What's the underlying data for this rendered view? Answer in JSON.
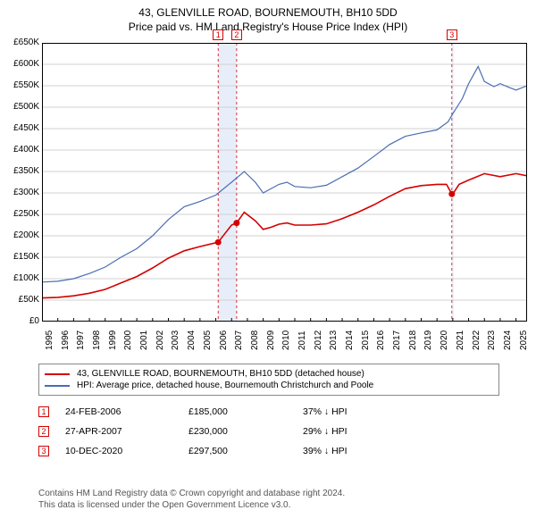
{
  "title": {
    "line1": "43, GLENVILLE ROAD, BOURNEMOUTH, BH10 5DD",
    "line2": "Price paid vs. HM Land Registry's House Price Index (HPI)",
    "fontsize": 12,
    "color": "#000000"
  },
  "chart": {
    "type": "line",
    "background_color": "#ffffff",
    "border_color": "#000000",
    "grid_color": "#d0d0d0",
    "highlight_band_color": "#e8eef9",
    "x": {
      "min": 1995,
      "max": 2025.7,
      "ticks": [
        1995,
        1996,
        1997,
        1998,
        1999,
        2000,
        2001,
        2002,
        2003,
        2004,
        2005,
        2006,
        2007,
        2008,
        2009,
        2010,
        2011,
        2012,
        2013,
        2014,
        2015,
        2016,
        2017,
        2018,
        2019,
        2020,
        2021,
        2022,
        2023,
        2024,
        2025
      ],
      "tick_labels": [
        "1995",
        "1996",
        "1997",
        "1998",
        "1999",
        "2000",
        "2001",
        "2002",
        "2003",
        "2004",
        "2005",
        "2006",
        "2007",
        "2008",
        "2009",
        "2010",
        "2011",
        "2012",
        "2013",
        "2014",
        "2015",
        "2016",
        "2017",
        "2018",
        "2019",
        "2020",
        "2021",
        "2022",
        "2023",
        "2024",
        "2025"
      ],
      "tick_fontsize": 10
    },
    "y": {
      "min": 0,
      "max": 650000,
      "step": 50000,
      "ticks": [
        0,
        50000,
        100000,
        150000,
        200000,
        250000,
        300000,
        350000,
        400000,
        450000,
        500000,
        550000,
        600000,
        650000
      ],
      "tick_labels": [
        "£0",
        "£50K",
        "£100K",
        "£150K",
        "£200K",
        "£250K",
        "£300K",
        "£350K",
        "£400K",
        "£450K",
        "£500K",
        "£550K",
        "£600K",
        "£650K"
      ],
      "tick_fontsize": 10
    },
    "highlight_bands": [
      {
        "xstart": 2006.15,
        "xend": 2007.32
      },
      {
        "xstart": 2020.94,
        "xend": 2021.05
      }
    ],
    "series": [
      {
        "name": "price_paid",
        "label": "43, GLENVILLE ROAD, BOURNEMOUTH, BH10 5DD (detached house)",
        "color": "#d40000",
        "line_width": 1.6,
        "points": [
          [
            1995.0,
            55000
          ],
          [
            1996.0,
            56500
          ],
          [
            1997.0,
            60000
          ],
          [
            1998.0,
            66000
          ],
          [
            1999.0,
            75000
          ],
          [
            2000.0,
            90000
          ],
          [
            2001.0,
            105000
          ],
          [
            2002.0,
            125000
          ],
          [
            2003.0,
            148000
          ],
          [
            2004.0,
            165000
          ],
          [
            2005.0,
            175000
          ],
          [
            2006.15,
            185000
          ],
          [
            2007.0,
            225000
          ],
          [
            2007.32,
            230000
          ],
          [
            2007.8,
            255000
          ],
          [
            2008.5,
            235000
          ],
          [
            2009.0,
            215000
          ],
          [
            2009.5,
            220000
          ],
          [
            2010.0,
            227000
          ],
          [
            2010.5,
            230000
          ],
          [
            2011.0,
            225000
          ],
          [
            2012.0,
            225000
          ],
          [
            2013.0,
            228000
          ],
          [
            2014.0,
            240000
          ],
          [
            2015.0,
            255000
          ],
          [
            2016.0,
            272000
          ],
          [
            2017.0,
            292000
          ],
          [
            2018.0,
            310000
          ],
          [
            2019.0,
            317000
          ],
          [
            2020.0,
            320000
          ],
          [
            2020.6,
            320000
          ],
          [
            2020.94,
            297500
          ],
          [
            2021.0,
            297500
          ],
          [
            2021.4,
            320000
          ],
          [
            2022.0,
            330000
          ],
          [
            2023.0,
            345000
          ],
          [
            2024.0,
            338000
          ],
          [
            2025.0,
            345000
          ],
          [
            2025.7,
            340000
          ]
        ],
        "markers": [
          {
            "x": 2006.15,
            "y": 185000
          },
          {
            "x": 2007.32,
            "y": 230000
          },
          {
            "x": 2020.94,
            "y": 297500
          }
        ],
        "marker_radius": 3.5
      },
      {
        "name": "hpi",
        "label": "HPI: Average price, detached house, Bournemouth Christchurch and Poole",
        "color": "#4a6db5",
        "line_width": 1.2,
        "points": [
          [
            1995.0,
            92000
          ],
          [
            1996.0,
            94000
          ],
          [
            1997.0,
            100000
          ],
          [
            1998.0,
            112000
          ],
          [
            1999.0,
            127000
          ],
          [
            2000.0,
            150000
          ],
          [
            2001.0,
            170000
          ],
          [
            2002.0,
            200000
          ],
          [
            2003.0,
            238000
          ],
          [
            2004.0,
            268000
          ],
          [
            2005.0,
            280000
          ],
          [
            2006.0,
            295000
          ],
          [
            2007.0,
            325000
          ],
          [
            2007.8,
            350000
          ],
          [
            2008.5,
            325000
          ],
          [
            2009.0,
            300000
          ],
          [
            2010.0,
            320000
          ],
          [
            2010.5,
            325000
          ],
          [
            2011.0,
            315000
          ],
          [
            2012.0,
            312000
          ],
          [
            2013.0,
            318000
          ],
          [
            2014.0,
            338000
          ],
          [
            2015.0,
            358000
          ],
          [
            2016.0,
            385000
          ],
          [
            2017.0,
            413000
          ],
          [
            2018.0,
            432000
          ],
          [
            2019.0,
            440000
          ],
          [
            2020.0,
            447000
          ],
          [
            2020.7,
            466000
          ],
          [
            2021.0,
            485000
          ],
          [
            2021.6,
            520000
          ],
          [
            2022.0,
            555000
          ],
          [
            2022.6,
            595000
          ],
          [
            2023.0,
            560000
          ],
          [
            2023.6,
            548000
          ],
          [
            2024.0,
            555000
          ],
          [
            2024.5,
            547000
          ],
          [
            2025.0,
            540000
          ],
          [
            2025.7,
            550000
          ]
        ]
      }
    ],
    "event_labels": [
      {
        "n": "1",
        "x": 2006.15,
        "color": "#d40000"
      },
      {
        "n": "2",
        "x": 2007.32,
        "color": "#d40000"
      },
      {
        "n": "3",
        "x": 2020.94,
        "color": "#d40000"
      }
    ],
    "event_dash_color": "#d40000"
  },
  "legend": {
    "border_color": "#888888",
    "fontsize": 10,
    "items": [
      {
        "color": "#d40000",
        "label": "43, GLENVILLE ROAD, BOURNEMOUTH, BH10 5DD (detached house)"
      },
      {
        "color": "#4a6db5",
        "label": "HPI: Average price, detached house, Bournemouth Christchurch and Poole"
      }
    ]
  },
  "events": [
    {
      "n": "1",
      "color": "#d40000",
      "date": "24-FEB-2006",
      "price": "£185,000",
      "pct": "37% ↓ HPI"
    },
    {
      "n": "2",
      "color": "#d40000",
      "date": "27-APR-2007",
      "price": "£230,000",
      "pct": "29% ↓ HPI"
    },
    {
      "n": "3",
      "color": "#d40000",
      "date": "10-DEC-2020",
      "price": "£297,500",
      "pct": "39% ↓ HPI"
    }
  ],
  "footnote": {
    "line1": "Contains HM Land Registry data © Crown copyright and database right 2024.",
    "line2": "This data is licensed under the Open Government Licence v3.0.",
    "color": "#555555",
    "fontsize": 10
  }
}
